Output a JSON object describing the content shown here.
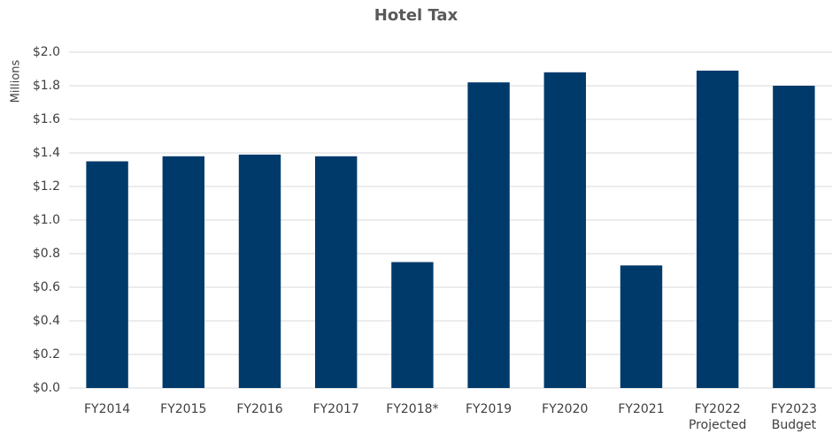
{
  "chart_data": {
    "type": "bar",
    "title": "Hotel Tax",
    "y_label": "Millions",
    "categories": [
      "FY2014",
      "FY2015",
      "FY2016",
      "FY2017",
      "FY2018*",
      "FY2019",
      "FY2020",
      "FY2021",
      [
        "FY2022",
        "Projected"
      ],
      [
        "FY2023",
        "Budget"
      ]
    ],
    "values": [
      1.35,
      1.38,
      1.39,
      1.38,
      0.75,
      1.82,
      1.88,
      0.73,
      1.89,
      1.8
    ],
    "color": "#003a6b",
    "ylim": [
      0,
      2
    ],
    "yticks": [
      {
        "value": 0,
        "label": "$0.0"
      },
      {
        "value": 0.2,
        "label": "$0.2"
      },
      {
        "value": 0.4,
        "label": "$0.4"
      },
      {
        "value": 0.6,
        "label": "$0.6"
      },
      {
        "value": 0.8,
        "label": "$0.8"
      },
      {
        "value": 1.0,
        "label": "$1.0"
      },
      {
        "value": 1.2,
        "label": "$1.2"
      },
      {
        "value": 1.4,
        "label": "$1.4"
      },
      {
        "value": 1.6,
        "label": "$1.6"
      },
      {
        "value": 1.8,
        "label": "$1.8"
      },
      {
        "value": 2.0,
        "label": "$2.0"
      }
    ],
    "grid": true
  }
}
